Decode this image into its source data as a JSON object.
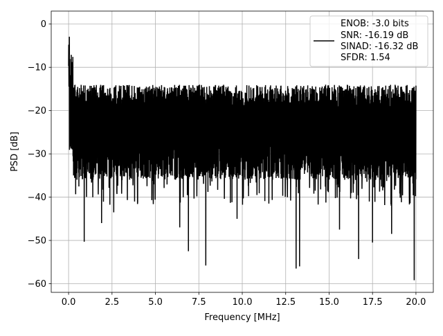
{
  "chart_data": {
    "type": "line",
    "xlabel": "Frequency [MHz]",
    "ylabel": "PSD [dB]",
    "xlim": [
      -1.0,
      21.0
    ],
    "ylim": [
      -62.0,
      3.0
    ],
    "xticks": [
      0.0,
      2.5,
      5.0,
      7.5,
      10.0,
      12.5,
      15.0,
      17.5,
      20.0
    ],
    "xtick_labels": [
      "0.0",
      "2.5",
      "5.0",
      "7.5",
      "10.0",
      "12.5",
      "15.0",
      "17.5",
      "20.0"
    ],
    "yticks": [
      0,
      -10,
      -20,
      -30,
      -40,
      -50,
      -60
    ],
    "ytick_labels": [
      "0",
      "−10",
      "−20",
      "−30",
      "−40",
      "−50",
      "−60"
    ],
    "grid": true,
    "legend_position": "top-right",
    "series": [
      {
        "legend_lines": [
          "ENOB: -3.0 bits",
          "SNR: -16.19 dB",
          "SINAD: -16.32 dB",
          "SFDR: 1.54"
        ],
        "color": "#000000",
        "x_range": [
          0.0,
          20.0
        ],
        "noise_band": [
          -30.0,
          -14.0
        ],
        "peak_start": -0.5,
        "deep_nulls": [
          {
            "x": 0.9,
            "y": -50.3
          },
          {
            "x": 1.9,
            "y": -46.0
          },
          {
            "x": 2.6,
            "y": -43.5
          },
          {
            "x": 3.8,
            "y": -41.0
          },
          {
            "x": 6.4,
            "y": -47.0
          },
          {
            "x": 6.9,
            "y": -52.5
          },
          {
            "x": 7.9,
            "y": -55.8
          },
          {
            "x": 9.7,
            "y": -45.0
          },
          {
            "x": 13.1,
            "y": -56.5
          },
          {
            "x": 13.3,
            "y": -56.0
          },
          {
            "x": 15.6,
            "y": -47.5
          },
          {
            "x": 16.7,
            "y": -54.3
          },
          {
            "x": 17.5,
            "y": -50.5
          },
          {
            "x": 18.6,
            "y": -48.5
          },
          {
            "x": 19.9,
            "y": -59.2
          }
        ]
      }
    ]
  }
}
